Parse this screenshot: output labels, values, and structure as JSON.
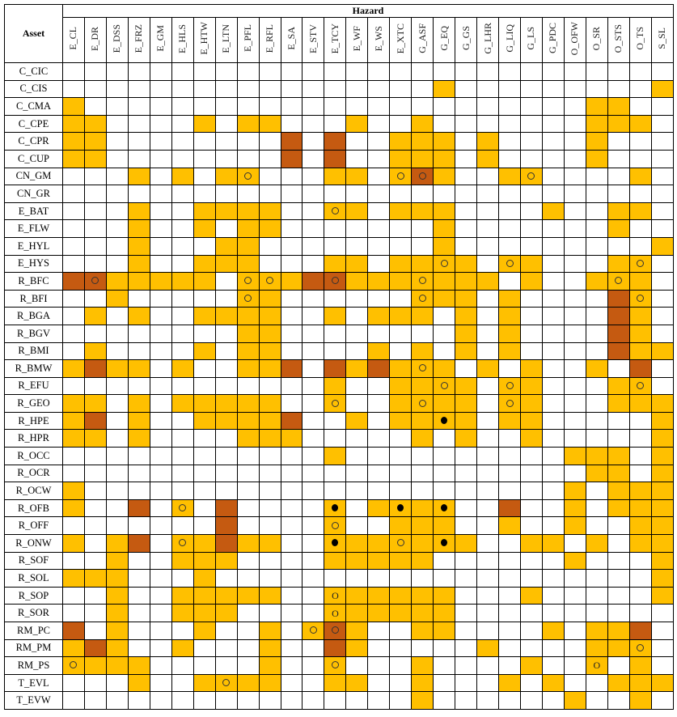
{
  "chart_data": {
    "type": "table",
    "row_header": "Asset",
    "column_group_header": "Hazard",
    "colors": {
      "orange": "#FFC000",
      "dark": "#C55A11",
      "white": "#FFFFFF"
    },
    "marker_legend": {
      "o": "ring",
      "*": "filled-dot",
      "O": "letter-O"
    },
    "hazards": [
      "E_CL",
      "E_DR",
      "E_DSS",
      "E_FRZ",
      "E_GM",
      "E_HLS",
      "E_HTW",
      "E_LTN",
      "E_PFL",
      "E_RFL",
      "E_SA",
      "E_STV",
      "E_TCY",
      "E_WF",
      "E_WS",
      "E_XTC",
      "G_ASF",
      "G_EQ",
      "G_GS",
      "G_LHR",
      "G_LIQ",
      "G_LS",
      "G_PDC",
      "O_OFW",
      "O_SR",
      "O_STS",
      "O_TS",
      "S_SL"
    ],
    "rows": [
      {
        "asset": "C_CIC",
        "orange": [],
        "dark": [],
        "marks": {}
      },
      {
        "asset": "C_CIS",
        "orange": [
          17,
          27
        ],
        "dark": [],
        "marks": {}
      },
      {
        "asset": "C_CMA",
        "orange": [
          0,
          24,
          25
        ],
        "dark": [],
        "marks": {}
      },
      {
        "asset": "C_CPE",
        "orange": [
          0,
          1,
          6,
          8,
          9,
          13,
          16,
          24,
          25,
          26
        ],
        "dark": [],
        "marks": {}
      },
      {
        "asset": "C_CPR",
        "orange": [
          0,
          1,
          15,
          16,
          17,
          19,
          24
        ],
        "dark": [
          10,
          12
        ],
        "marks": {}
      },
      {
        "asset": "C_CUP",
        "orange": [
          0,
          1,
          15,
          16,
          17,
          19,
          24
        ],
        "dark": [
          10,
          12
        ],
        "marks": {}
      },
      {
        "asset": "CN_GM",
        "orange": [
          3,
          5,
          7,
          8,
          12,
          13,
          15,
          17,
          20,
          21,
          26
        ],
        "dark": [
          16
        ],
        "marks": {
          "8": "o",
          "15": "o",
          "16": "o",
          "21": "o"
        }
      },
      {
        "asset": "CN_GR",
        "orange": [],
        "dark": [],
        "marks": {}
      },
      {
        "asset": "E_BAT",
        "orange": [
          3,
          6,
          7,
          8,
          9,
          12,
          13,
          15,
          16,
          17,
          22,
          25,
          26
        ],
        "dark": [],
        "marks": {
          "12": "o"
        }
      },
      {
        "asset": "E_FLW",
        "orange": [
          3,
          6,
          8,
          9,
          17,
          25
        ],
        "dark": [],
        "marks": {}
      },
      {
        "asset": "E_HYL",
        "orange": [
          3,
          7,
          8,
          17,
          27
        ],
        "dark": [],
        "marks": {}
      },
      {
        "asset": "E_HYS",
        "orange": [
          3,
          6,
          7,
          8,
          12,
          13,
          15,
          16,
          17,
          18,
          20,
          21,
          25,
          26
        ],
        "dark": [],
        "marks": {
          "17": "o",
          "20": "o",
          "26": "o"
        }
      },
      {
        "asset": "R_BFC",
        "orange": [
          2,
          3,
          4,
          5,
          6,
          8,
          9,
          10,
          13,
          14,
          15,
          16,
          17,
          18,
          19,
          21,
          24,
          25,
          26
        ],
        "dark": [
          0,
          1,
          11,
          12
        ],
        "marks": {
          "1": "o",
          "8": "o",
          "9": "o",
          "12": "o",
          "16": "o",
          "25": "o"
        }
      },
      {
        "asset": "R_BFI",
        "orange": [
          2,
          8,
          9,
          16,
          17,
          18,
          20,
          26
        ],
        "dark": [
          25
        ],
        "marks": {
          "8": "o",
          "16": "o",
          "26": "o"
        }
      },
      {
        "asset": "R_BGA",
        "orange": [
          1,
          3,
          6,
          7,
          8,
          9,
          12,
          14,
          15,
          16,
          18,
          20,
          26
        ],
        "dark": [
          25
        ],
        "marks": {}
      },
      {
        "asset": "R_BGV",
        "orange": [
          8,
          9,
          18,
          20,
          26
        ],
        "dark": [
          25
        ],
        "marks": {}
      },
      {
        "asset": "R_BMI",
        "orange": [
          1,
          6,
          8,
          9,
          14,
          16,
          18,
          20,
          26,
          27
        ],
        "dark": [
          25
        ],
        "marks": {}
      },
      {
        "asset": "R_BMW",
        "orange": [
          0,
          2,
          3,
          5,
          8,
          9,
          13,
          15,
          16,
          17,
          19,
          21,
          24
        ],
        "dark": [
          1,
          10,
          12,
          14,
          26
        ],
        "marks": {
          "16": "o"
        }
      },
      {
        "asset": "R_EFU",
        "orange": [
          12,
          15,
          16,
          17,
          18,
          20,
          21,
          25,
          26
        ],
        "dark": [],
        "marks": {
          "17": "o",
          "20": "o",
          "26": "o"
        }
      },
      {
        "asset": "R_GEO",
        "orange": [
          0,
          1,
          3,
          5,
          6,
          7,
          8,
          9,
          12,
          15,
          16,
          17,
          18,
          20,
          21,
          25,
          26,
          27
        ],
        "dark": [],
        "marks": {
          "12": "o",
          "16": "o",
          "20": "o"
        }
      },
      {
        "asset": "R_HPE",
        "orange": [
          0,
          3,
          6,
          7,
          8,
          9,
          13,
          15,
          16,
          17,
          18,
          20,
          21,
          27
        ],
        "dark": [
          1,
          10
        ],
        "marks": {
          "17": "*"
        }
      },
      {
        "asset": "R_HPR",
        "orange": [
          0,
          1,
          3,
          8,
          9,
          10,
          16,
          18,
          21,
          27
        ],
        "dark": [],
        "marks": {}
      },
      {
        "asset": "R_OCC",
        "orange": [
          12,
          23,
          24,
          25,
          27
        ],
        "dark": [],
        "marks": {}
      },
      {
        "asset": "R_OCR",
        "orange": [
          24,
          25,
          27
        ],
        "dark": [],
        "marks": {}
      },
      {
        "asset": "R_OCW",
        "orange": [
          0,
          23,
          25,
          26,
          27
        ],
        "dark": [],
        "marks": {}
      },
      {
        "asset": "R_OFB",
        "orange": [
          0,
          5,
          12,
          14,
          15,
          16,
          17,
          23,
          25,
          26,
          27
        ],
        "dark": [
          3,
          7,
          20
        ],
        "marks": {
          "5": "o",
          "12": "*",
          "15": "*",
          "17": "*"
        }
      },
      {
        "asset": "R_OFF",
        "orange": [
          12,
          15,
          16,
          17,
          20,
          23,
          26,
          27
        ],
        "dark": [
          7
        ],
        "marks": {
          "12": "o"
        }
      },
      {
        "asset": "R_ONW",
        "orange": [
          0,
          2,
          5,
          6,
          8,
          9,
          12,
          13,
          14,
          15,
          16,
          17,
          18,
          21,
          22,
          24,
          26,
          27
        ],
        "dark": [
          3,
          7
        ],
        "marks": {
          "5": "o",
          "12": "*",
          "15": "o",
          "17": "*"
        }
      },
      {
        "asset": "R_SOF",
        "orange": [
          2,
          5,
          6,
          7,
          12,
          13,
          14,
          15,
          16,
          23,
          27
        ],
        "dark": [],
        "marks": {}
      },
      {
        "asset": "R_SOL",
        "orange": [
          0,
          1,
          2,
          6,
          27
        ],
        "dark": [],
        "marks": {}
      },
      {
        "asset": "R_SOP",
        "orange": [
          2,
          5,
          6,
          7,
          8,
          9,
          12,
          13,
          14,
          15,
          16,
          17,
          21,
          27
        ],
        "dark": [],
        "marks": {
          "12": "O"
        }
      },
      {
        "asset": "R_SOR",
        "orange": [
          2,
          5,
          6,
          7,
          12,
          13,
          14,
          15,
          16,
          17
        ],
        "dark": [],
        "marks": {
          "12": "O"
        }
      },
      {
        "asset": "RM_PC",
        "orange": [
          2,
          6,
          9,
          11,
          13,
          16,
          17,
          22,
          24,
          25
        ],
        "dark": [
          0,
          12,
          26
        ],
        "marks": {
          "11": "o",
          "12": "o"
        }
      },
      {
        "asset": "RM_PM",
        "orange": [
          0,
          2,
          5,
          9,
          13,
          19,
          24,
          25,
          26
        ],
        "dark": [
          1,
          12
        ],
        "marks": {
          "26": "o"
        }
      },
      {
        "asset": "RM_PS",
        "orange": [
          0,
          1,
          2,
          3,
          9,
          12,
          16,
          21,
          24,
          26
        ],
        "dark": [],
        "marks": {
          "0": "o",
          "12": "o",
          "24": "O"
        }
      },
      {
        "asset": "T_EVL",
        "orange": [
          3,
          6,
          7,
          8,
          9,
          12,
          13,
          16,
          20,
          22,
          25,
          26,
          27
        ],
        "dark": [],
        "marks": {
          "7": "o"
        }
      },
      {
        "asset": "T_EVW",
        "orange": [
          16,
          23,
          26
        ],
        "dark": [],
        "marks": {}
      }
    ]
  }
}
